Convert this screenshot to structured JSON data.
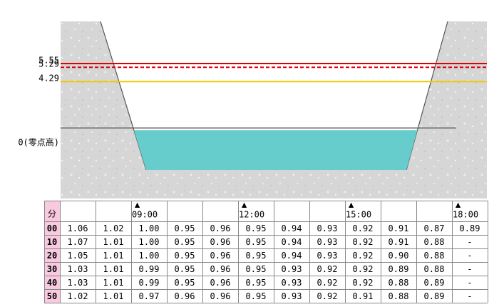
{
  "diagram": {
    "levels": [
      {
        "value": 5.55,
        "label": "5.55",
        "color": "#e00000",
        "style": "solid"
      },
      {
        "value": 5.29,
        "label": "5.29",
        "color": "#e00000",
        "style": "dashed"
      },
      {
        "value": 4.29,
        "label": "4.29",
        "color": "#f0c800",
        "style": "solid"
      },
      {
        "value": 0,
        "label": "0(零点高)"
      }
    ]
  },
  "table": {
    "corner": "分",
    "columns": [
      null,
      null,
      "09:00",
      null,
      null,
      "12:00",
      null,
      null,
      "15:00",
      null,
      null,
      "18:00"
    ],
    "rows": [
      {
        "label": "00",
        "values": [
          "1.06",
          "1.02",
          "1.00",
          "0.95",
          "0.96",
          "0.95",
          "0.94",
          "0.93",
          "0.92",
          "0.91",
          "0.87",
          "0.89"
        ]
      },
      {
        "label": "10",
        "values": [
          "1.07",
          "1.01",
          "1.00",
          "0.95",
          "0.96",
          "0.95",
          "0.94",
          "0.93",
          "0.92",
          "0.91",
          "0.88",
          "-"
        ]
      },
      {
        "label": "20",
        "values": [
          "1.05",
          "1.01",
          "1.00",
          "0.95",
          "0.96",
          "0.95",
          "0.94",
          "0.93",
          "0.92",
          "0.90",
          "0.88",
          "-"
        ]
      },
      {
        "label": "30",
        "values": [
          "1.03",
          "1.01",
          "0.99",
          "0.95",
          "0.96",
          "0.95",
          "0.93",
          "0.92",
          "0.92",
          "0.89",
          "0.88",
          "-"
        ]
      },
      {
        "label": "40",
        "values": [
          "1.03",
          "1.01",
          "0.99",
          "0.95",
          "0.96",
          "0.95",
          "0.93",
          "0.92",
          "0.92",
          "0.88",
          "0.89",
          "-"
        ]
      },
      {
        "label": "50",
        "values": [
          "1.02",
          "1.01",
          "0.97",
          "0.96",
          "0.96",
          "0.95",
          "0.93",
          "0.92",
          "0.91",
          "0.88",
          "0.89",
          "-"
        ]
      }
    ]
  }
}
